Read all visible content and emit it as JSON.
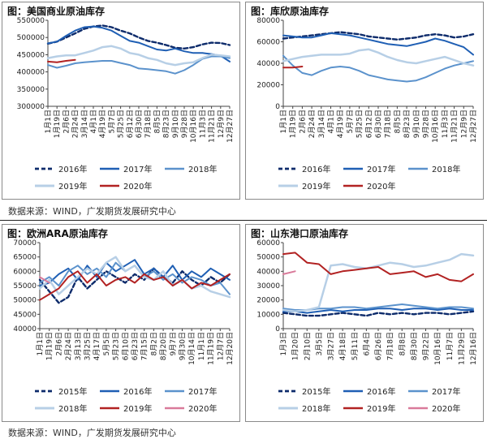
{
  "colors": {
    "navy": "#0d2b6b",
    "blue": "#1f5fb4",
    "mid": "#5b92cc",
    "light": "#b7cfe6",
    "red": "#b22222",
    "pink": "#d97a9a"
  },
  "source_text": "数据来源：WIND，广发期货发展研究中心",
  "chart_data": [
    {
      "type": "line",
      "title": "图：美国商业原油库存",
      "ylim": [
        300000,
        550000
      ],
      "yticks": [
        300000,
        350000,
        400000,
        450000,
        500000,
        550000
      ],
      "xticks": [
        "1月1日",
        "1月19日",
        "2月6日",
        "2月24日",
        "3月14日",
        "4月1日",
        "4月19日",
        "5月7日",
        "5月25日",
        "6月12日",
        "6月30日",
        "7月18日",
        "8月5日",
        "8月23日",
        "9月10日",
        "9月28日",
        "10月16日",
        "11月3日",
        "11月21日",
        "12月9日",
        "12月27日"
      ],
      "legend_position": "bottom",
      "series": [
        {
          "name": "2016年",
          "color": "navy",
          "dash": "5,3",
          "width": 2.4,
          "values": [
            482000,
            488000,
            500000,
            512000,
            525000,
            532000,
            535000,
            530000,
            520000,
            512000,
            500000,
            490000,
            485000,
            478000,
            470000,
            468000,
            472000,
            480000,
            485000,
            484000,
            478000
          ]
        },
        {
          "name": "2017年",
          "color": "blue",
          "dash": "",
          "width": 2,
          "values": [
            483000,
            488000,
            505000,
            520000,
            530000,
            532000,
            528000,
            520000,
            505000,
            490000,
            485000,
            475000,
            465000,
            462000,
            468000,
            460000,
            455000,
            455000,
            452000,
            447000,
            430000
          ]
        },
        {
          "name": "2018年",
          "color": "mid",
          "dash": "",
          "width": 2,
          "values": [
            420000,
            412000,
            418000,
            425000,
            428000,
            430000,
            432000,
            432000,
            426000,
            420000,
            410000,
            408000,
            405000,
            402000,
            395000,
            405000,
            420000,
            438000,
            445000,
            445000,
            440000
          ]
        },
        {
          "name": "2019年",
          "color": "light",
          "dash": "",
          "width": 2.5,
          "values": [
            440000,
            445000,
            448000,
            448000,
            455000,
            462000,
            472000,
            475000,
            468000,
            455000,
            450000,
            440000,
            435000,
            425000,
            420000,
            425000,
            428000,
            440000,
            450000,
            448000,
            445000
          ]
        },
        {
          "name": "2020年",
          "color": "red",
          "dash": "",
          "width": 2,
          "values": [
            430000,
            428000,
            432000,
            435000,
            null,
            null,
            null,
            null,
            null,
            null,
            null,
            null,
            null,
            null,
            null,
            null,
            null,
            null,
            null,
            null,
            null
          ]
        }
      ]
    },
    {
      "type": "line",
      "title": "图：库欣原油库存",
      "ylim": [
        0,
        80000
      ],
      "yticks": [
        0,
        20000,
        40000,
        60000,
        80000
      ],
      "xticks": [
        "1月1日",
        "1月19日",
        "2月6日",
        "2月24日",
        "3月14日",
        "4月1日",
        "4月19日",
        "5月7日",
        "5月25日",
        "6月12日",
        "6月30日",
        "7月18日",
        "8月5日",
        "8月23日",
        "9月10日",
        "9月28日",
        "10月16日",
        "11月3日",
        "11月21日",
        "12月9日",
        "12月27日"
      ],
      "legend_position": "bottom",
      "series": [
        {
          "name": "2016年",
          "color": "navy",
          "dash": "5,3",
          "width": 2.4,
          "values": [
            63000,
            64000,
            65000,
            66000,
            67000,
            68000,
            69000,
            68000,
            67000,
            65000,
            64000,
            63000,
            62000,
            63000,
            64000,
            66000,
            67000,
            66000,
            64000,
            65000,
            67000
          ]
        },
        {
          "name": "2017年",
          "color": "blue",
          "dash": "",
          "width": 2,
          "values": [
            66000,
            65000,
            64000,
            64000,
            66000,
            68000,
            67000,
            66000,
            64000,
            62000,
            60000,
            58000,
            57000,
            56000,
            58000,
            60000,
            63000,
            61000,
            58000,
            55000,
            48000
          ]
        },
        {
          "name": "2018年",
          "color": "mid",
          "dash": "",
          "width": 2,
          "values": [
            47000,
            38000,
            31000,
            29000,
            33000,
            36000,
            37000,
            36000,
            33000,
            29000,
            27000,
            25000,
            24000,
            23000,
            24000,
            27000,
            31000,
            35000,
            38000,
            40000,
            42000
          ]
        },
        {
          "name": "2019年",
          "color": "light",
          "dash": "",
          "width": 2.5,
          "values": [
            42000,
            44000,
            46000,
            47000,
            48000,
            48000,
            48000,
            49000,
            52000,
            53000,
            50000,
            46000,
            43000,
            41000,
            40000,
            42000,
            44000,
            46000,
            43000,
            40000,
            38000
          ]
        },
        {
          "name": "2020年",
          "color": "red",
          "dash": "",
          "width": 2,
          "values": [
            36000,
            36000,
            37000,
            null,
            null,
            null,
            null,
            null,
            null,
            null,
            null,
            null,
            null,
            null,
            null,
            null,
            null,
            null,
            null,
            null,
            null
          ]
        }
      ]
    },
    {
      "type": "line",
      "title": "图：欧洲ARA原油库存",
      "ylim": [
        40000,
        70000
      ],
      "yticks": [
        40000,
        45000,
        50000,
        55000,
        60000,
        65000,
        70000
      ],
      "xticks": [
        "1月1日",
        "1月19日",
        "2月6日",
        "2月24日",
        "3月13日",
        "3月25日",
        "4月17日",
        "5月5日",
        "5月23日",
        "6月10日",
        "6月23日",
        "7月15日",
        "8月2日",
        "8月20日",
        "9月7日",
        "9月30日",
        "10月14日",
        "11月1日",
        "11月19日",
        "12月7日",
        "12月20日"
      ],
      "legend_position": "bottom",
      "series": [
        {
          "name": "2015年",
          "color": "navy",
          "dash": "5,3",
          "width": 2.4,
          "values": [
            57000,
            53000,
            49000,
            51000,
            58000,
            54000,
            57000,
            60000,
            58000,
            56000,
            59000,
            57000,
            61000,
            58000,
            56000,
            60000,
            57000,
            55000,
            58000,
            56000,
            59000
          ]
        },
        {
          "name": "2016年",
          "color": "blue",
          "dash": "",
          "width": 2,
          "values": [
            55000,
            56000,
            59000,
            61000,
            57000,
            62000,
            58000,
            63000,
            60000,
            62000,
            64000,
            59000,
            61000,
            58000,
            62000,
            57000,
            60000,
            58000,
            61000,
            59000,
            57000
          ]
        },
        {
          "name": "2017年",
          "color": "mid",
          "dash": "",
          "width": 2,
          "values": [
            56000,
            58000,
            55000,
            60000,
            62000,
            59000,
            61000,
            58000,
            63000,
            60000,
            62000,
            58000,
            60000,
            57000,
            59000,
            56000,
            58000,
            57000,
            55000,
            56000,
            52000
          ]
        },
        {
          "name": "2018年",
          "color": "light",
          "dash": "",
          "width": 2.5,
          "values": [
            54000,
            57000,
            52000,
            55000,
            58000,
            61000,
            59000,
            63000,
            65000,
            60000,
            62000,
            58000,
            57000,
            60000,
            55000,
            57000,
            54000,
            55000,
            53000,
            52000,
            51000
          ]
        },
        {
          "name": "2019年",
          "color": "red",
          "dash": "",
          "width": 2,
          "values": [
            50000,
            52000,
            54000,
            58000,
            60000,
            56000,
            59000,
            55000,
            57000,
            58000,
            56000,
            59000,
            57000,
            58000,
            55000,
            57000,
            54000,
            56000,
            55000,
            57000,
            59000
          ]
        },
        {
          "name": "2020年",
          "color": "pink",
          "dash": "",
          "width": 2,
          "values": [
            58000,
            56000,
            null,
            null,
            null,
            null,
            null,
            null,
            null,
            null,
            null,
            null,
            null,
            null,
            null,
            null,
            null,
            null,
            null,
            null,
            null
          ]
        }
      ]
    },
    {
      "type": "line",
      "title": "图：山东港口原油库存",
      "ylim": [
        0,
        60000
      ],
      "yticks": [
        0,
        10000,
        20000,
        30000,
        40000,
        50000,
        60000
      ],
      "xticks": [
        "1月3日",
        "1月20日",
        "2月10日",
        "3月5日",
        "3月27日",
        "4月18日",
        "5月11日",
        "6月4日",
        "6月26日",
        "7月18日",
        "8月8日",
        "8月30日",
        "9月22日",
        "10月16日",
        "11月7日",
        "11月29日",
        "12月16日"
      ],
      "legend_position": "bottom",
      "series": [
        {
          "name": "2015年",
          "color": "navy",
          "dash": "5,3",
          "width": 2.4,
          "values": [
            11000,
            10000,
            9000,
            9000,
            10000,
            11000,
            10000,
            9000,
            11000,
            10000,
            11000,
            10000,
            11000,
            11000,
            10000,
            11000,
            12000
          ]
        },
        {
          "name": "2016年",
          "color": "blue",
          "dash": "",
          "width": 2,
          "values": [
            12000,
            12000,
            11000,
            12000,
            13000,
            12000,
            13000,
            13000,
            14000,
            14000,
            13000,
            14000,
            14000,
            13000,
            14000,
            13000,
            13000
          ]
        },
        {
          "name": "2017年",
          "color": "mid",
          "dash": "",
          "width": 2,
          "values": [
            14000,
            13000,
            13000,
            14000,
            14000,
            15000,
            15000,
            14000,
            15000,
            16000,
            17000,
            16000,
            15000,
            14000,
            15000,
            15000,
            14000
          ]
        },
        {
          "name": "2018年",
          "color": "light",
          "dash": "",
          "width": 2.5,
          "values": [
            13000,
            12000,
            13000,
            15000,
            44000,
            45000,
            43000,
            42000,
            44000,
            46000,
            45000,
            43000,
            44000,
            46000,
            48000,
            52000,
            51000
          ]
        },
        {
          "name": "2019年",
          "color": "red",
          "dash": "",
          "width": 2,
          "values": [
            52000,
            53000,
            46000,
            45000,
            38000,
            40000,
            41000,
            42000,
            43000,
            38000,
            39000,
            40000,
            36000,
            38000,
            34000,
            33000,
            38000
          ]
        },
        {
          "name": "2020年",
          "color": "pink",
          "dash": "",
          "width": 2,
          "values": [
            38000,
            40000,
            null,
            null,
            null,
            null,
            null,
            null,
            null,
            null,
            null,
            null,
            null,
            null,
            null,
            null,
            null
          ]
        }
      ]
    }
  ]
}
